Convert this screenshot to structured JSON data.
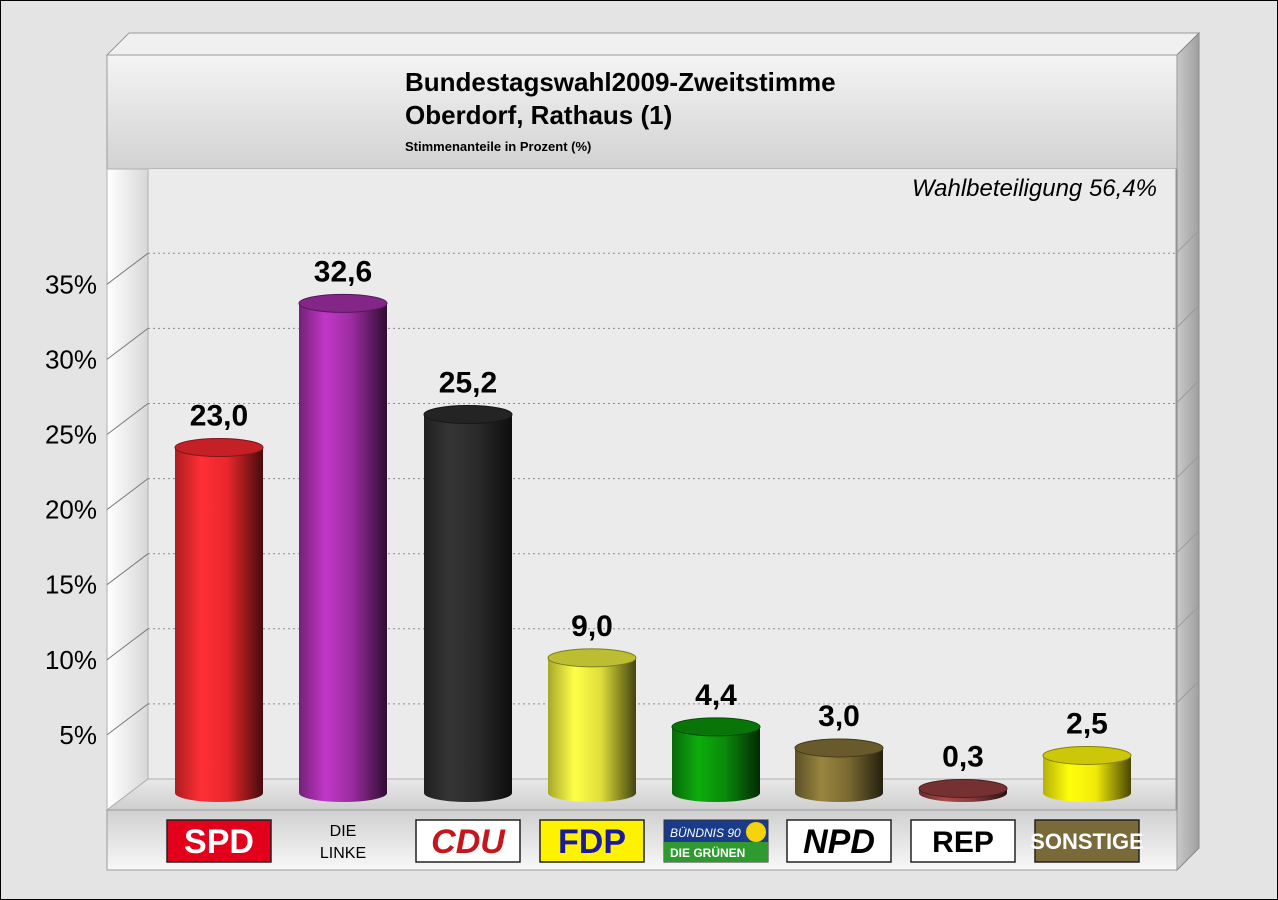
{
  "chart_data": {
    "type": "bar",
    "title": "Bundestagswahl2009-Zweitstimme",
    "subtitle_line": "Oberdorf, Rathaus (1)",
    "caption": "Stimmenanteile in Prozent (%)",
    "annotation": "Wahlbeteiligung 56,4%",
    "ylim": [
      0,
      40
    ],
    "yticks": [
      {
        "value": 5,
        "label": "5%"
      },
      {
        "value": 10,
        "label": "10%"
      },
      {
        "value": 15,
        "label": "15%"
      },
      {
        "value": 20,
        "label": "20%"
      },
      {
        "value": 25,
        "label": "25%"
      },
      {
        "value": 30,
        "label": "30%"
      },
      {
        "value": 35,
        "label": "35%"
      }
    ],
    "grid": true,
    "legend": "none",
    "categories": [
      "SPD",
      "DIE LINKE",
      "CDU",
      "FDP",
      "BÜNDNIS 90 DIE GRÜNEN",
      "NPD",
      "REP",
      "SONSTIGE"
    ],
    "values": [
      23.0,
      32.6,
      25.2,
      9.0,
      4.4,
      3.0,
      0.3,
      2.5
    ],
    "value_labels": [
      "23,0",
      "32,6",
      "25,2",
      "9,0",
      "4,4",
      "3,0",
      "0,3",
      "2,5"
    ],
    "colors": [
      "#e8262b",
      "#9b2ca0",
      "#2a2a2a",
      "#dede3a",
      "#0a8a0a",
      "#7a6a32",
      "#8a3a3a",
      "#f2ea0a"
    ]
  },
  "logos": [
    {
      "name": "spd-logo",
      "text": "SPD",
      "bg": "#e3001b",
      "fg": "#ffffff"
    },
    {
      "name": "die-linke-logo",
      "text": "DIE LINKE",
      "line1": "DIE",
      "line2": "LINKE",
      "bg": "#ffffff",
      "fg": "#000000"
    },
    {
      "name": "cdu-logo",
      "text": "CDU",
      "bg": "#ffffff",
      "fg": "#c4161c"
    },
    {
      "name": "fdp-logo",
      "text": "FDP",
      "bg": "#fff200",
      "fg": "#1a1a9a"
    },
    {
      "name": "gruene-logo",
      "text": "BÜNDNIS 90 DIE GRÜNEN",
      "line1": "BÜNDNIS 90",
      "line2": "DIE GRÜNEN",
      "bg": "#1a3a8a",
      "fg": "#ffffff"
    },
    {
      "name": "npd-logo",
      "text": "NPD",
      "bg": "#ffffff",
      "fg": "#000000"
    },
    {
      "name": "rep-logo",
      "text": "REP",
      "bg": "#ffffff",
      "fg": "#000000"
    },
    {
      "name": "sonstige-logo",
      "text": "SONSTIGE",
      "bg": "#7a6a3a",
      "fg": "#ffffff"
    }
  ]
}
